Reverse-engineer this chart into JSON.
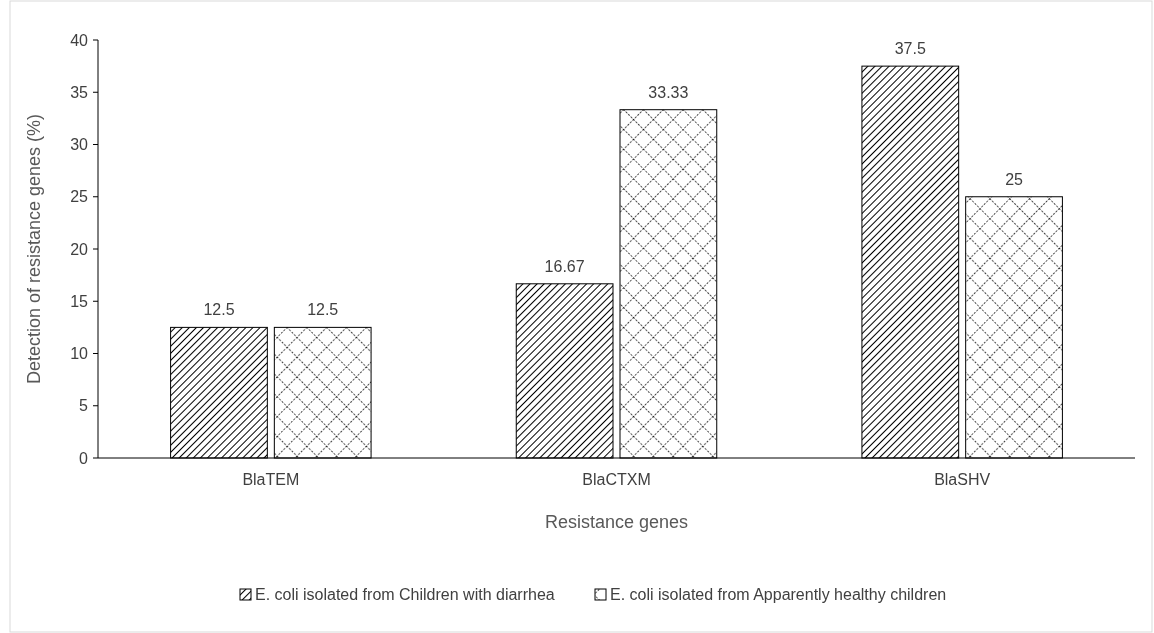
{
  "chart_data": {
    "type": "bar",
    "xlabel": "Resistance genes",
    "ylabel": "Detection of resistance genes (%)",
    "categories": [
      "BlaTEM",
      "BlaCTXM",
      "BlaSHV"
    ],
    "series": [
      {
        "name": "E. coli isolated from Children with diarrhea",
        "color": "#000000",
        "values": [
          12.5,
          16.67,
          37.5
        ]
      },
      {
        "name": "E. coli isolated from Apparently healthy children",
        "color": "#000000",
        "values": [
          12.5,
          33.33,
          25
        ]
      }
    ],
    "ylim": [
      0,
      40
    ],
    "yticks": [
      0,
      5,
      10,
      15,
      20,
      25,
      30,
      35,
      40
    ],
    "grid": false,
    "data_labels": true,
    "legend": "bottom"
  }
}
